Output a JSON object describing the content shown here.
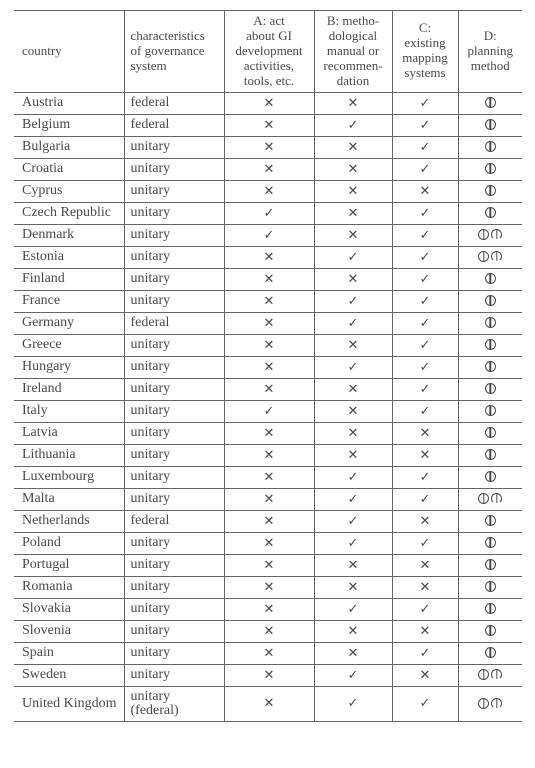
{
  "columns": {
    "country": "country",
    "gov": "characteristics\nof governance\nsystem",
    "a": "A: act\nabout GI\ndevelopment\nactivities,\ntools, etc.",
    "b": "B: metho-\ndological\nmanual or\nrecommen-\ndation",
    "c": "C:\nexisting\nmapping\nsystems",
    "d": "D:\nplanning\nmethod"
  },
  "symbols": {
    "yes": "✓",
    "no": "✕"
  },
  "rows": [
    {
      "country": "Austria",
      "gov": "federal",
      "a": "no",
      "b": "no",
      "c": "yes",
      "d": "circ"
    },
    {
      "country": "Belgium",
      "gov": "federal",
      "a": "no",
      "b": "yes",
      "c": "yes",
      "d": "circ"
    },
    {
      "country": "Bulgaria",
      "gov": "unitary",
      "a": "no",
      "b": "no",
      "c": "yes",
      "d": "circ"
    },
    {
      "country": "Croatia",
      "gov": "unitary",
      "a": "no",
      "b": "no",
      "c": "yes",
      "d": "circ"
    },
    {
      "country": "Cyprus",
      "gov": "unitary",
      "a": "no",
      "b": "no",
      "c": "no",
      "d": "circ"
    },
    {
      "country": "Czech Republic",
      "gov": "unitary",
      "a": "yes",
      "b": "no",
      "c": "yes",
      "d": "circ"
    },
    {
      "country": "Denmark",
      "gov": "unitary",
      "a": "yes",
      "b": "no",
      "c": "yes",
      "d": "both"
    },
    {
      "country": "Estonia",
      "gov": "unitary",
      "a": "no",
      "b": "yes",
      "c": "yes",
      "d": "both"
    },
    {
      "country": "Finland",
      "gov": "unitary",
      "a": "no",
      "b": "no",
      "c": "yes",
      "d": "circ"
    },
    {
      "country": "France",
      "gov": "unitary",
      "a": "no",
      "b": "yes",
      "c": "yes",
      "d": "circ"
    },
    {
      "country": "Germany",
      "gov": "federal",
      "a": "no",
      "b": "yes",
      "c": "yes",
      "d": "circ"
    },
    {
      "country": "Greece",
      "gov": "unitary",
      "a": "no",
      "b": "no",
      "c": "yes",
      "d": "circ"
    },
    {
      "country": "Hungary",
      "gov": "unitary",
      "a": "no",
      "b": "yes",
      "c": "yes",
      "d": "circ"
    },
    {
      "country": "Ireland",
      "gov": "unitary",
      "a": "no",
      "b": "no",
      "c": "yes",
      "d": "circ"
    },
    {
      "country": "Italy",
      "gov": "unitary",
      "a": "yes",
      "b": "no",
      "c": "yes",
      "d": "circ"
    },
    {
      "country": "Latvia",
      "gov": "unitary",
      "a": "no",
      "b": "no",
      "c": "no",
      "d": "circ"
    },
    {
      "country": "Lithuania",
      "gov": "unitary",
      "a": "no",
      "b": "no",
      "c": "no",
      "d": "circ"
    },
    {
      "country": "Luxembourg",
      "gov": "unitary",
      "a": "no",
      "b": "yes",
      "c": "yes",
      "d": "circ"
    },
    {
      "country": "Malta",
      "gov": "unitary",
      "a": "no",
      "b": "yes",
      "c": "yes",
      "d": "both"
    },
    {
      "country": "Netherlands",
      "gov": "federal",
      "a": "no",
      "b": "yes",
      "c": "no",
      "d": "circ"
    },
    {
      "country": "Poland",
      "gov": "unitary",
      "a": "no",
      "b": "yes",
      "c": "yes",
      "d": "circ"
    },
    {
      "country": "Portugal",
      "gov": "unitary",
      "a": "no",
      "b": "no",
      "c": "no",
      "d": "circ"
    },
    {
      "country": "Romania",
      "gov": "unitary",
      "a": "no",
      "b": "no",
      "c": "no",
      "d": "circ"
    },
    {
      "country": "Slovakia",
      "gov": "unitary",
      "a": "no",
      "b": "yes",
      "c": "yes",
      "d": "circ"
    },
    {
      "country": "Slovenia",
      "gov": "unitary",
      "a": "no",
      "b": "no",
      "c": "no",
      "d": "circ"
    },
    {
      "country": "Spain",
      "gov": "unitary",
      "a": "no",
      "b": "no",
      "c": "yes",
      "d": "circ"
    },
    {
      "country": "Sweden",
      "gov": "unitary",
      "a": "no",
      "b": "yes",
      "c": "no",
      "d": "both"
    },
    {
      "country": "United Kingdom",
      "gov": "unitary (federal)",
      "a": "no",
      "b": "yes",
      "c": "yes",
      "d": "both"
    }
  ]
}
